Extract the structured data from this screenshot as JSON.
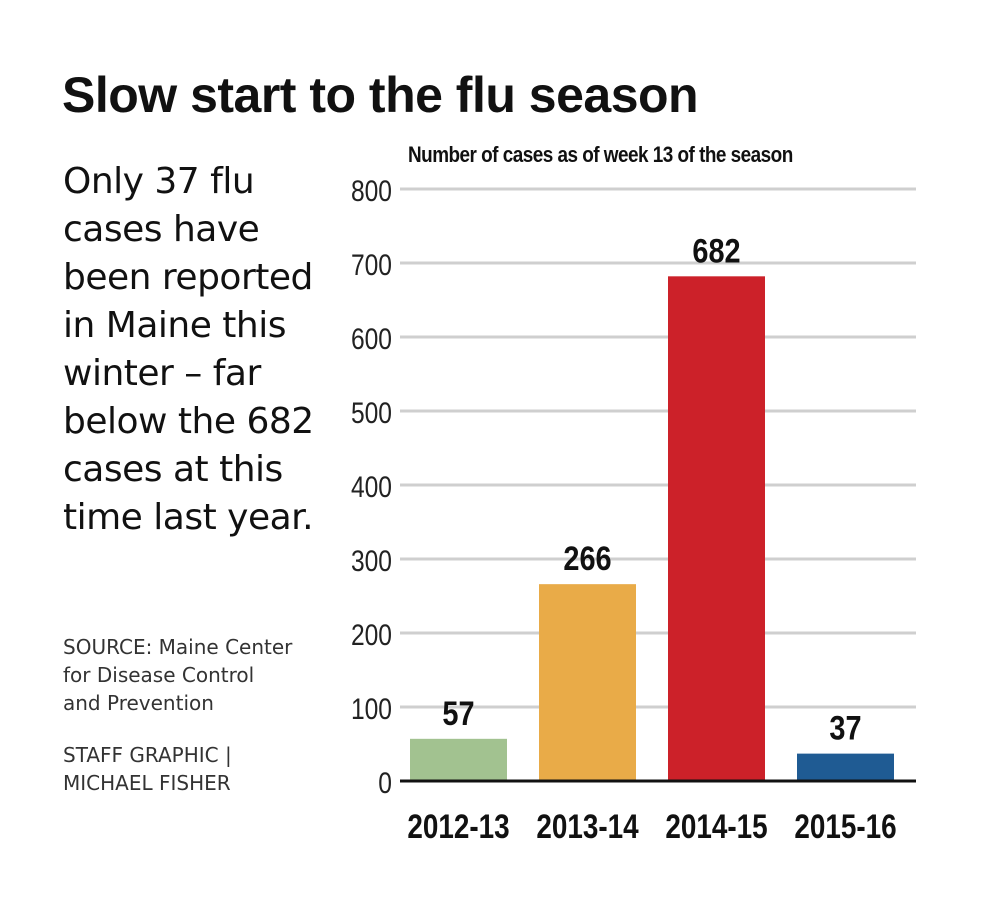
{
  "title": "Slow start to the flu season",
  "blurb_lines": [
    "Only 37 flu",
    "cases have",
    "been reported",
    "in Maine this",
    "winter – far",
    "below the 682",
    "cases at this",
    "time last year."
  ],
  "source_lines": [
    "SOURCE: Maine Center",
    "for Disease Control",
    "and Prevention"
  ],
  "credit_lines": [
    "STAFF GRAPHIC |",
    "MICHAEL FISHER"
  ],
  "chart_data": {
    "type": "bar",
    "title": "Number of cases as of week 13 of the season",
    "xlabel": "",
    "ylabel": "",
    "categories": [
      "2012-13",
      "2013-14",
      "2014-15",
      "2015-16"
    ],
    "values": [
      57,
      266,
      682,
      37
    ],
    "value_labels": [
      "57",
      "266",
      "682",
      "37"
    ],
    "colors": [
      "#a2c290",
      "#e9ab48",
      "#cc2129",
      "#1f5b93"
    ],
    "ylim": [
      0,
      800
    ],
    "yticks": [
      0,
      100,
      200,
      300,
      400,
      500,
      600,
      700,
      800
    ],
    "grid": true,
    "legend": "none"
  }
}
